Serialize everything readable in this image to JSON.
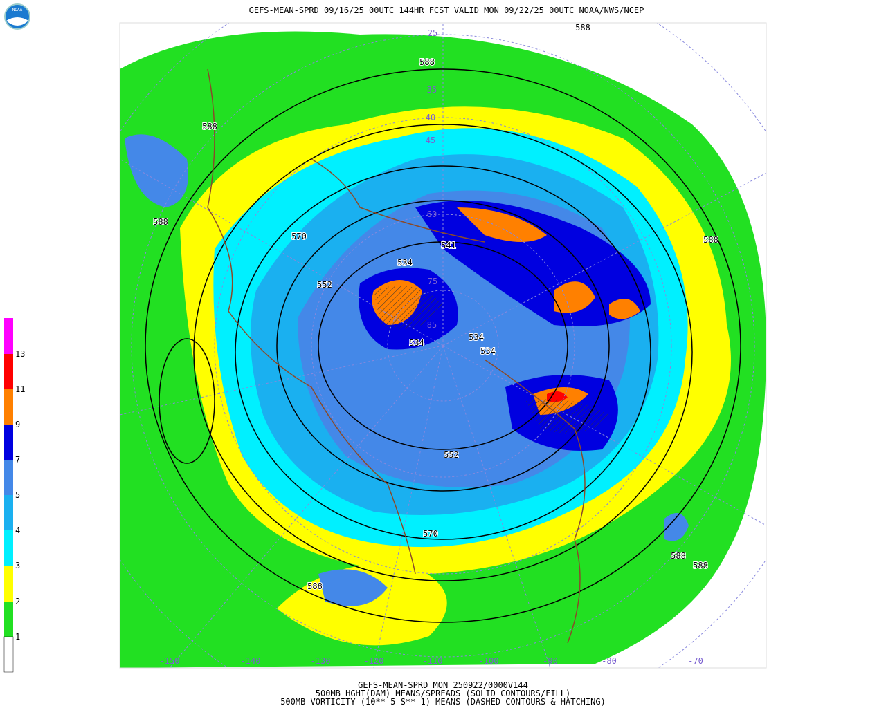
{
  "header": {
    "title": "GEFS-MEAN-SPRD 09/16/25 00UTC 144HR FCST VALID MON 09/22/25 00UTC NOAA/NWS/NCEP",
    "logo": "NOAA"
  },
  "legend": {
    "labels": [
      "13",
      "11",
      "9",
      "7",
      "5",
      "4",
      "3",
      "2",
      "1"
    ]
  },
  "map": {
    "height_labels": [
      "588",
      "588",
      "588",
      "588",
      "570",
      "552",
      "534",
      "534",
      "534",
      "534",
      "552",
      "570",
      "588",
      "588",
      "588",
      "588",
      "541"
    ],
    "latitude_labels": [
      "25",
      "35",
      "40",
      "45",
      "60",
      "75",
      "85"
    ],
    "longitude_labels": [
      "-150",
      "-140",
      "-130",
      "-120",
      "-110",
      "-100",
      "-90",
      "-80",
      "-70"
    ]
  },
  "footer": {
    "lines": [
      "GEFS-MEAN-SPRD MON 250922/0000V144",
      "500MB HGHT(DAM) MEANS/SPREADS (SOLID CONTOURS/FILL)",
      "500MB VORTICITY (10**-5 S**-1) MEANS (DASHED CONTOURS & HATCHING)"
    ]
  }
}
